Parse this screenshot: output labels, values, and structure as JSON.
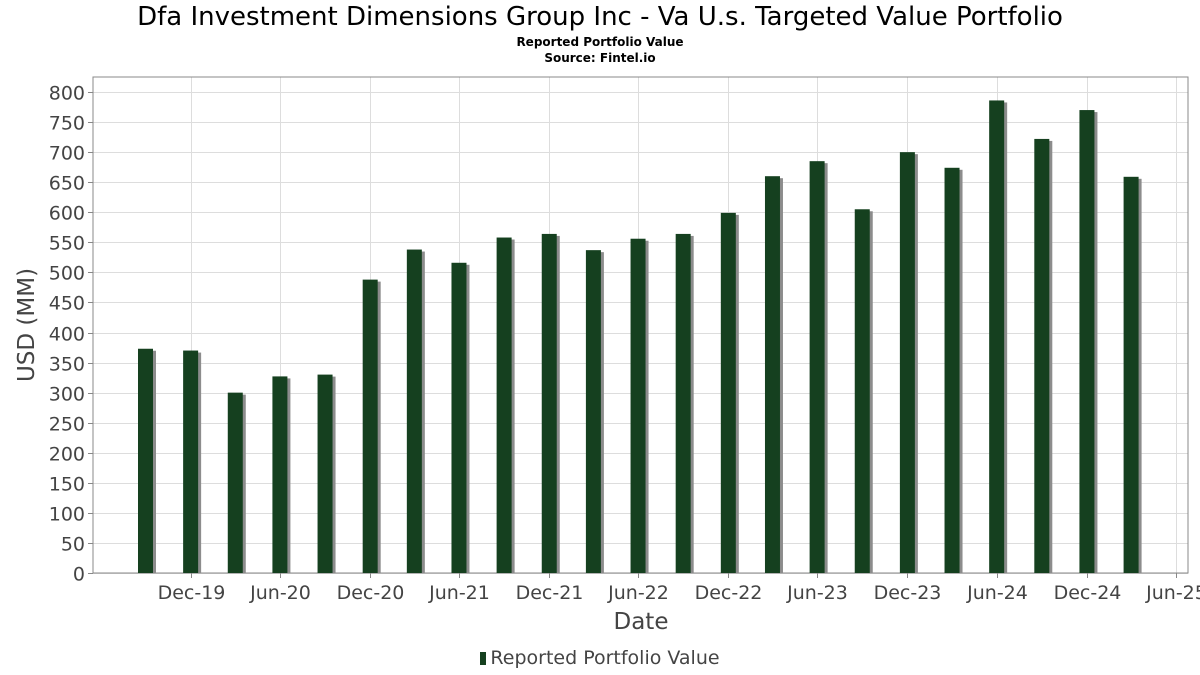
{
  "chart_data": {
    "type": "bar",
    "title": "Dfa Investment Dimensions Group Inc - Va U.s. Targeted Value Portfolio",
    "subtitle": "Reported Portfolio Value",
    "source": "Source: Fintel.io",
    "xlabel": "Date",
    "ylabel": "USD (MM)",
    "ylim": [
      0,
      825
    ],
    "yticks": [
      0,
      50,
      100,
      150,
      200,
      250,
      300,
      350,
      400,
      450,
      500,
      550,
      600,
      650,
      700,
      750,
      800
    ],
    "xtick_labels": [
      "Dec-19",
      "Jun-20",
      "Dec-20",
      "Jun-21",
      "Dec-21",
      "Jun-22",
      "Dec-22",
      "Jun-23",
      "Dec-23",
      "Jun-24",
      "Dec-24",
      "Jun-25"
    ],
    "xtick_dates": [
      "2019-12-31",
      "2020-06-30",
      "2020-12-31",
      "2021-06-30",
      "2021-12-31",
      "2022-06-30",
      "2022-12-31",
      "2023-06-30",
      "2023-12-31",
      "2024-06-30",
      "2024-12-31",
      "2025-06-30"
    ],
    "x_range": [
      "2019-06-15",
      "2025-07-25"
    ],
    "grid": true,
    "legend_position": "bottom-center",
    "colors": {
      "bar": "#15401f",
      "shadow": "#8c8c8c",
      "grid": "#dddddd",
      "axis": "#888888"
    },
    "series": [
      {
        "name": "Reported Portfolio Value",
        "dates": [
          "2019-09-30",
          "2019-12-31",
          "2020-03-31",
          "2020-06-30",
          "2020-09-30",
          "2020-12-31",
          "2021-03-31",
          "2021-06-30",
          "2021-09-30",
          "2021-12-31",
          "2022-03-31",
          "2022-06-30",
          "2022-09-30",
          "2022-12-31",
          "2023-03-31",
          "2023-06-30",
          "2023-09-30",
          "2023-12-31",
          "2024-03-31",
          "2024-06-30",
          "2024-09-30",
          "2024-12-31",
          "2025-03-31"
        ],
        "values": [
          373,
          370,
          300,
          327,
          330,
          488,
          538,
          516,
          558,
          564,
          537,
          556,
          564,
          599,
          660,
          685,
          605,
          700,
          674,
          786,
          722,
          770,
          659
        ]
      }
    ]
  }
}
